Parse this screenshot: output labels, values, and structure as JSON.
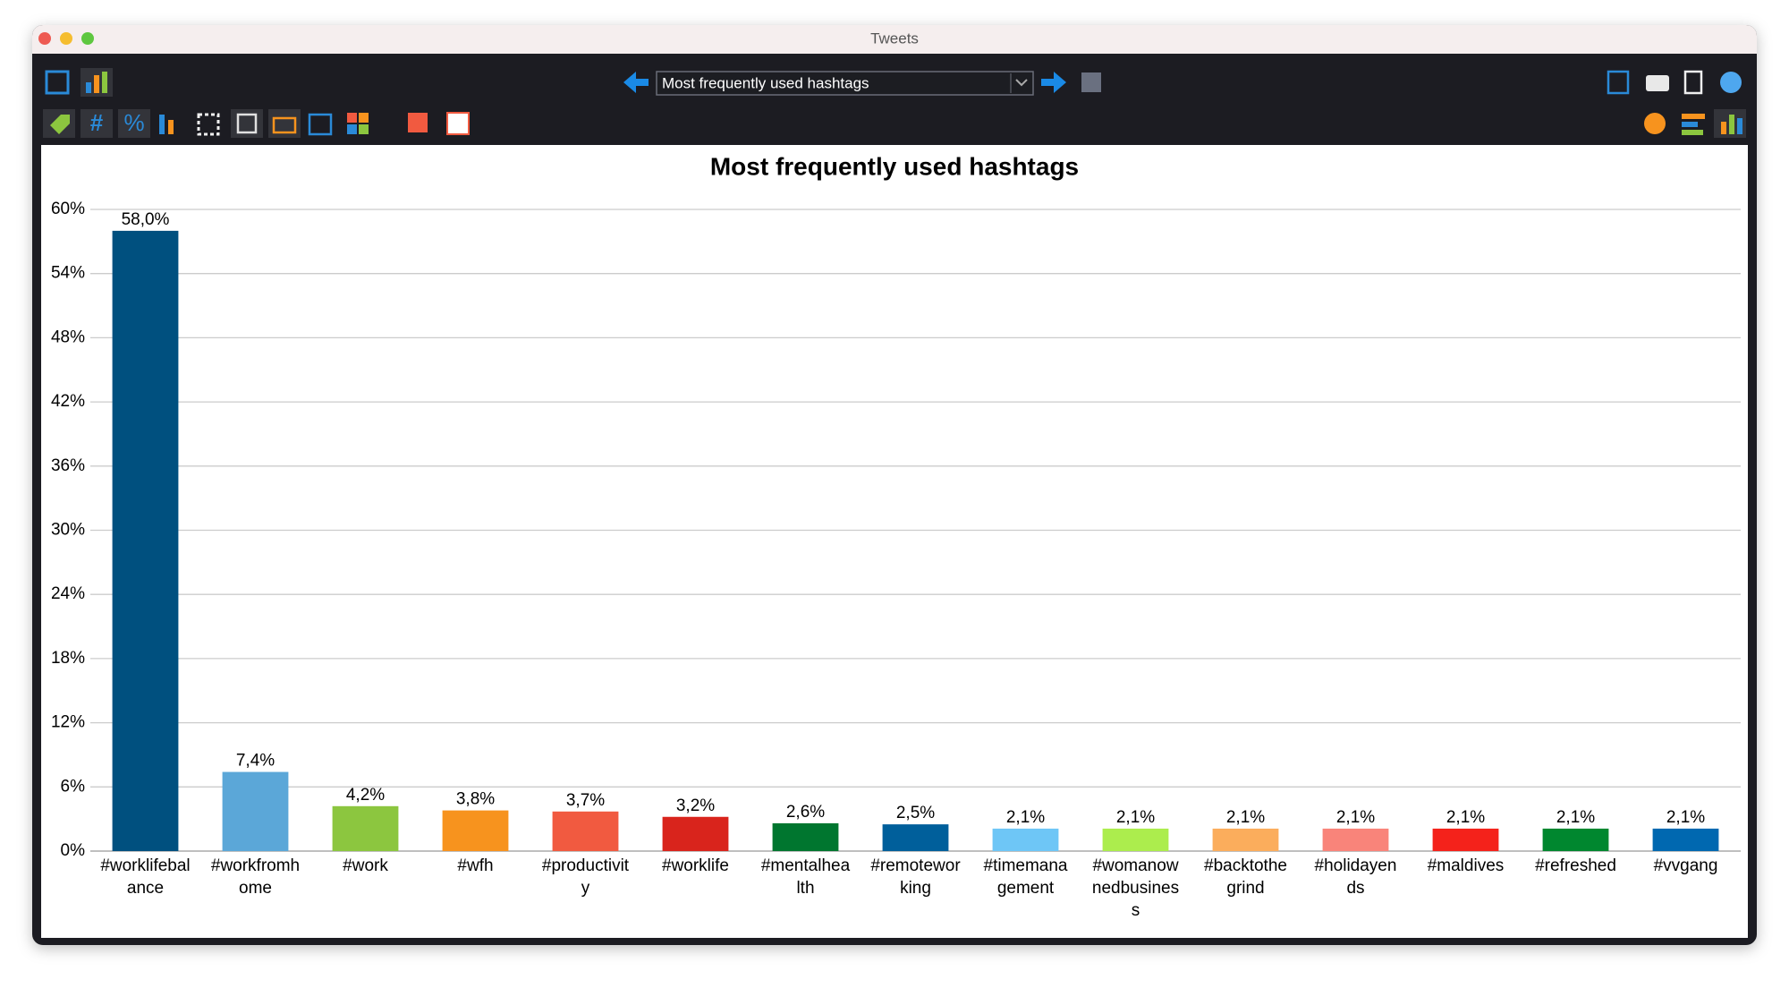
{
  "window": {
    "title": "Tweets"
  },
  "toolbar": {
    "selection": "Most frequently used hashtags"
  },
  "chart_data": {
    "type": "bar",
    "title": "Most frequently used hashtags",
    "categories": [
      "#worklifebalance",
      "#workfromhome",
      "#work",
      "#wfh",
      "#productivity",
      "#worklife",
      "#mentalhealth",
      "#remoteworking",
      "#timemanagement",
      "#womanownedbusiness",
      "#backtothegrind",
      "#holidayends",
      "#maldives",
      "#refreshed",
      "#vvgang"
    ],
    "values": [
      58.0,
      7.4,
      4.2,
      3.8,
      3.7,
      3.2,
      2.6,
      2.5,
      2.1,
      2.1,
      2.1,
      2.1,
      2.1,
      2.1,
      2.1
    ],
    "value_labels": [
      "58,0%",
      "7,4%",
      "4,2%",
      "3,8%",
      "3,7%",
      "3,2%",
      "2,6%",
      "2,5%",
      "2,1%",
      "2,1%",
      "2,1%",
      "2,1%",
      "2,1%",
      "2,1%",
      "2,1%"
    ],
    "colors": [
      "#00507f",
      "#5ba7d8",
      "#8cc63f",
      "#f7931e",
      "#f15a40",
      "#d9241c",
      "#00762f",
      "#005f9b",
      "#6ec6f6",
      "#aced4d",
      "#fbad5c",
      "#f9847a",
      "#f4221b",
      "#00872f",
      "#0068b0"
    ],
    "ylim": [
      0,
      60
    ],
    "yticks": [
      {
        "value": 0,
        "label": "0%"
      },
      {
        "value": 6,
        "label": "6%"
      },
      {
        "value": 12,
        "label": "12%"
      },
      {
        "value": 18,
        "label": "18%"
      },
      {
        "value": 24,
        "label": "24%"
      },
      {
        "value": 30,
        "label": "30%"
      },
      {
        "value": 36,
        "label": "36%"
      },
      {
        "value": 42,
        "label": "42%"
      },
      {
        "value": 48,
        "label": "48%"
      },
      {
        "value": 54,
        "label": "54%"
      },
      {
        "value": 60,
        "label": "60%"
      }
    ],
    "grid": true
  }
}
